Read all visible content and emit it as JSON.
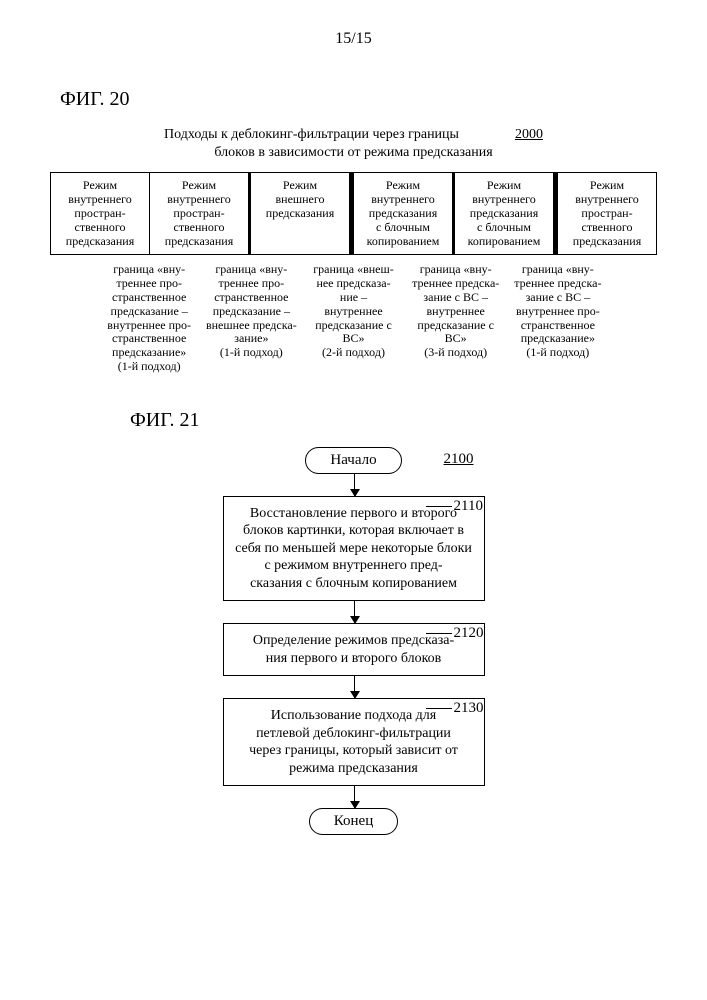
{
  "page_number": "15/15",
  "fig20": {
    "label": "ФИГ. 20",
    "title_line1": "Подходы к деблокинг-фильтрации через границы",
    "title_line2": "блоков в зависимости от режима предсказания",
    "ref": "2000",
    "blocks": [
      "Режим\nвнутреннего\nпростран-\nственного\nпредсказания",
      "Режим\nвнутреннего\nпростран-\nственного\nпредсказания",
      "Режим\nвнешнего\nпредсказания",
      "Режим\nвнутреннего\nпредсказания\nс блочным\nкопированием",
      "Режим\nвнутреннего\nпредсказания\nс блочным\nкопированием",
      "Режим\nвнутреннего\nпростран-\nственного\nпредсказания"
    ],
    "border_weights": [
      "thin",
      "thin",
      "med",
      "thick",
      "med",
      "thick",
      "thin"
    ],
    "boundaries": [
      "граница «вну-\nтреннее про-\nстранственное\nпредсказание –\nвнутреннее про-\nстранственное\nпредсказание»\n(1-й подход)",
      "граница «вну-\nтреннее про-\nстранственное\nпредсказание –\nвнешнее предска-\nзание»\n(1-й подход)",
      "граница «внеш-\nнее предсказа-\nние –\nвнутреннее\nпредсказание с\nBC»\n(2-й подход)",
      "граница «вну-\nтреннее предска-\nзание с BC –\nвнутреннее\nпредсказание с\nBC»\n(3-й подход)",
      "граница «вну-\nтреннее предска-\nзание с BC –\nвнутреннее про-\nстранственное\nпредсказание»\n(1-й подход)"
    ]
  },
  "fig21": {
    "label": "ФИГ. 21",
    "ref": "2100",
    "start": "Начало",
    "end": "Конец",
    "steps": [
      {
        "ref": "2110",
        "text": "Восстановление первого и второго блоков картинки, которая включает в себя по меньшей мере некоторые блоки с режимом внутреннего пред-\nсказания с блочным копированием"
      },
      {
        "ref": "2120",
        "text": "Определение режимов предсказа-\nния первого и второго блоков"
      },
      {
        "ref": "2130",
        "text": "Использование подхода для\nпетлевой деблокинг-фильтрации\nчерез границы, который зависит от\nрежима предсказания"
      }
    ]
  },
  "colors": {
    "text": "#000000",
    "background": "#ffffff"
  }
}
